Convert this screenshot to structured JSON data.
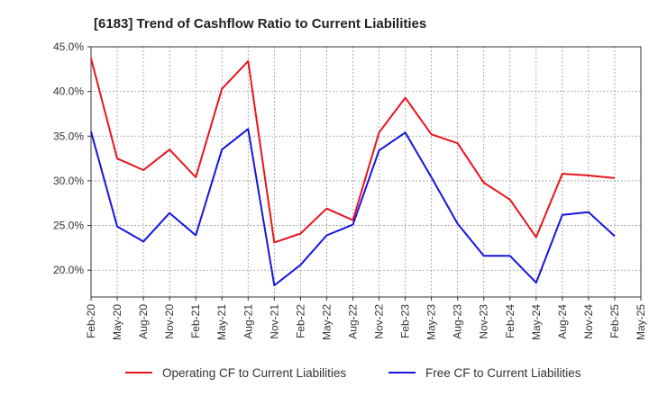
{
  "chart_data": {
    "type": "line",
    "title": "[6183]  Trend of Cashflow Ratio to Current Liabilities",
    "xlabel": "",
    "ylabel": "",
    "ylim": [
      17.0,
      45.0
    ],
    "y_ticks": [
      20.0,
      25.0,
      30.0,
      35.0,
      40.0,
      45.0
    ],
    "y_tick_labels": [
      "20.0%",
      "25.0%",
      "30.0%",
      "35.0%",
      "40.0%",
      "45.0%"
    ],
    "x_tick_labels": [
      "Feb-20",
      "May-20",
      "Aug-20",
      "Nov-20",
      "Feb-21",
      "May-21",
      "Aug-21",
      "Nov-21",
      "Feb-22",
      "May-22",
      "Aug-22",
      "Nov-22",
      "Feb-23",
      "May-23",
      "Aug-23",
      "Nov-23",
      "Feb-24",
      "May-24",
      "Aug-24",
      "Nov-24",
      "Feb-25",
      "May-25"
    ],
    "categories": [
      "Feb-20",
      "May-20",
      "Aug-20",
      "Nov-20",
      "Feb-21",
      "May-21",
      "Aug-21",
      "Nov-21",
      "Feb-22",
      "May-22",
      "Aug-22",
      "Nov-22",
      "Feb-23",
      "May-23",
      "Aug-23",
      "Nov-23",
      "Feb-24",
      "May-24",
      "Aug-24",
      "Nov-24",
      "Feb-25"
    ],
    "grid": true,
    "legend_position": "bottom",
    "series": [
      {
        "name": "Operating CF to Current Liabilities",
        "color": "#e8141b",
        "values": [
          43.7,
          32.5,
          31.2,
          33.5,
          30.4,
          40.3,
          43.4,
          23.1,
          24.1,
          26.9,
          25.6,
          35.4,
          39.3,
          35.2,
          34.2,
          29.8,
          27.9,
          23.7,
          30.8,
          30.6,
          30.3
        ]
      },
      {
        "name": "Free CF to Current Liabilities",
        "color": "#1515e0",
        "values": [
          35.5,
          24.9,
          23.2,
          26.4,
          23.9,
          33.5,
          35.8,
          18.3,
          20.6,
          23.9,
          25.1,
          33.4,
          35.4,
          30.4,
          25.2,
          21.6,
          21.6,
          18.6,
          26.2,
          26.5,
          23.8
        ]
      }
    ]
  }
}
